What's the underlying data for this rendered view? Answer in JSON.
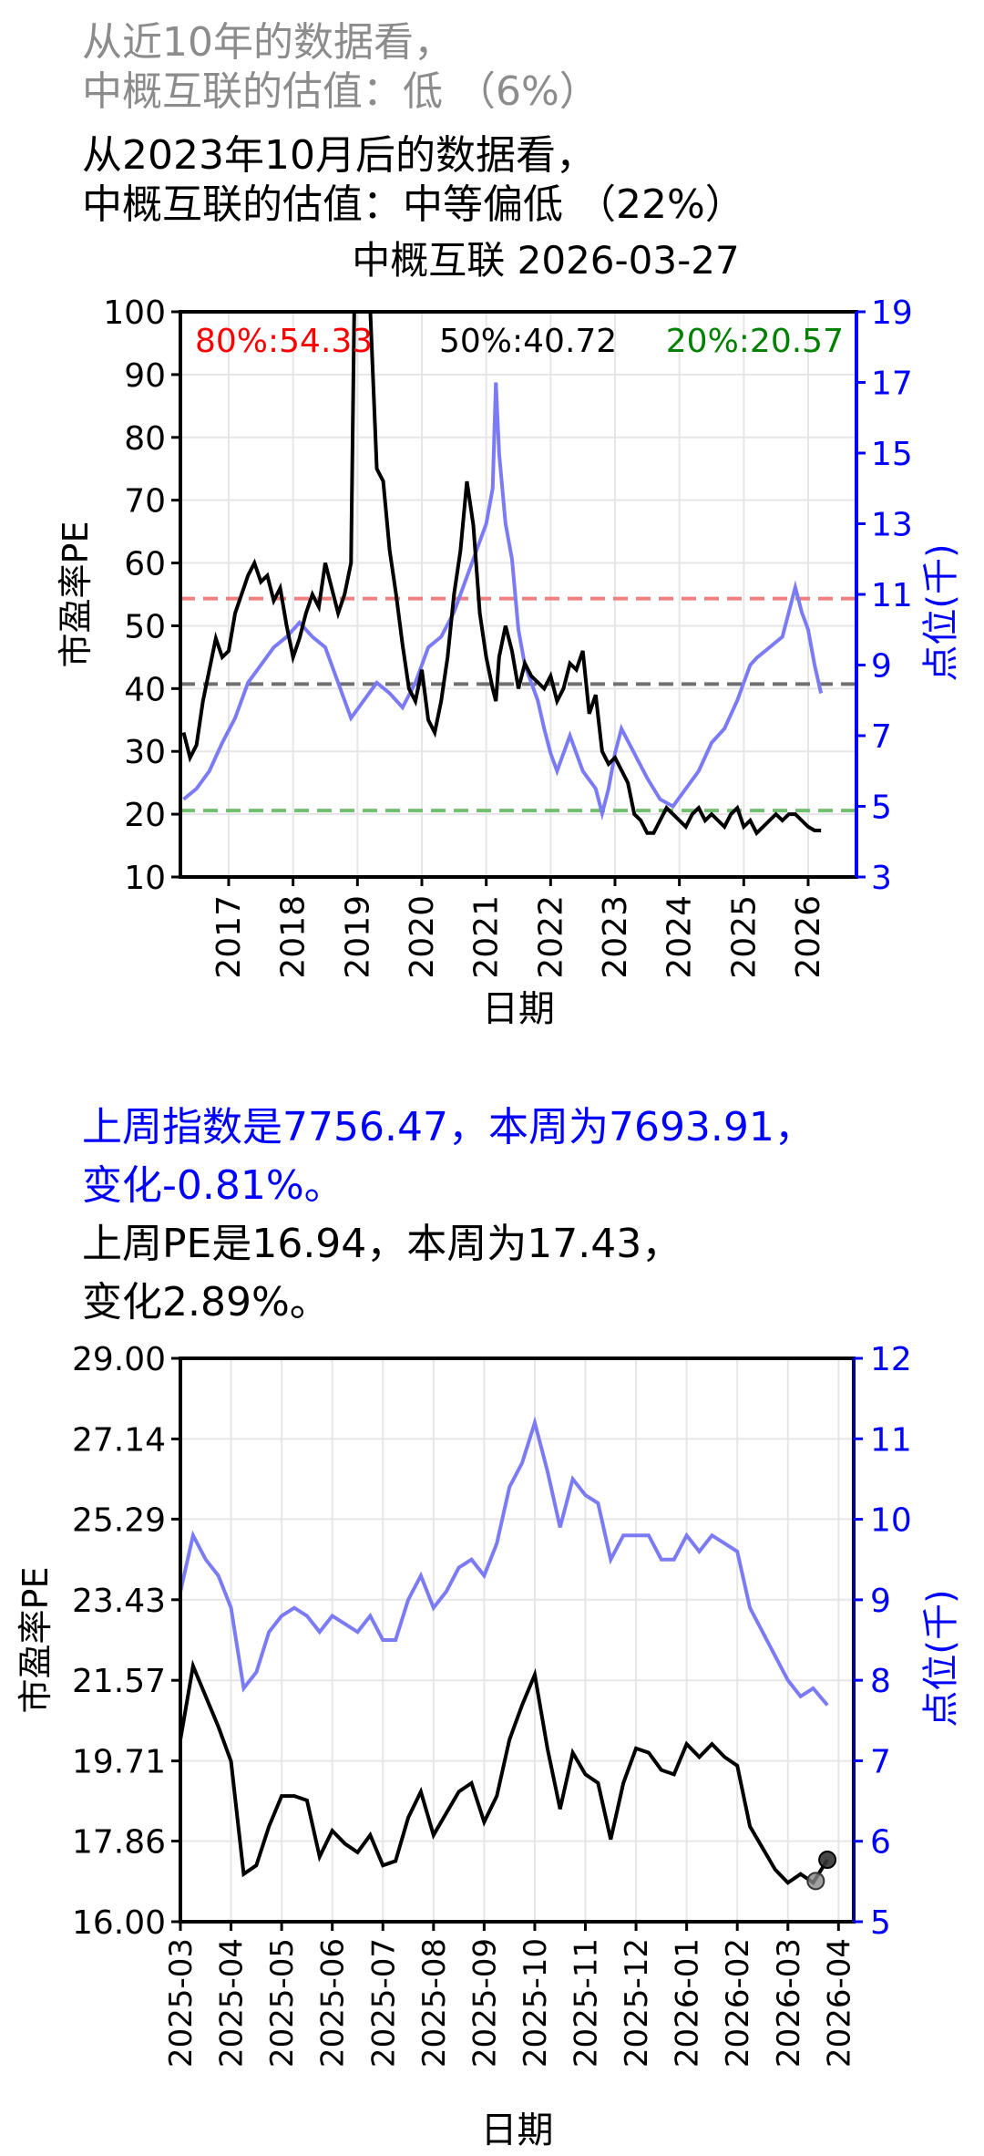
{
  "summary": {
    "line1": "从近10年的数据看，",
    "line2": "中概互联的估值：低 （6%）",
    "line3": "从2023年10月后的数据看，",
    "line4": "中概互联的估值：中等偏低 （22%）"
  },
  "change": {
    "index_line1": "上周指数是7756.47，本周为7693.91，",
    "index_line2": "变化-0.81%。",
    "pe_line1": "上周PE是16.94，本周为17.43，",
    "pe_line2": "变化2.89%。"
  },
  "colors": {
    "pe_line": "#000000",
    "index_line": "#7b7bf5",
    "p80": "#f08080",
    "p50": "#707070",
    "p20": "#70c070",
    "right_axis": "#0000ff"
  },
  "chart_data": [
    {
      "type": "line",
      "title": "中概互联 2026-03-27",
      "xlabel": "日期",
      "ylabel": "市盈率PE",
      "y2label": "点位(千)",
      "ylim": [
        10,
        100
      ],
      "y2lim": [
        3,
        19
      ],
      "xlim": [
        2016.25,
        2026.75
      ],
      "yticks": [
        "10",
        "20",
        "30",
        "40",
        "50",
        "60",
        "70",
        "80",
        "90",
        "100"
      ],
      "y2ticks": [
        "3",
        "5",
        "7",
        "9",
        "11",
        "13",
        "15",
        "17",
        "19"
      ],
      "xticks": [
        "2017",
        "2018",
        "2019",
        "2020",
        "2021",
        "2022",
        "2023",
        "2024",
        "2025",
        "2026"
      ],
      "grid": true,
      "reference_lines": [
        {
          "label": "80%:54.33",
          "value": 54.33,
          "color": "#f08080"
        },
        {
          "label": "50%:40.72",
          "value": 40.72,
          "color": "#707070"
        },
        {
          "label": "20%:20.57",
          "value": 20.57,
          "color": "#70c070"
        }
      ],
      "series": [
        {
          "name": "市盈率PE",
          "axis": "left",
          "x": [
            2016.3,
            2016.4,
            2016.5,
            2016.6,
            2016.8,
            2016.9,
            2017.0,
            2017.1,
            2017.2,
            2017.3,
            2017.4,
            2017.5,
            2017.6,
            2017.7,
            2017.8,
            2017.9,
            2018.0,
            2018.1,
            2018.2,
            2018.3,
            2018.4,
            2018.5,
            2018.6,
            2018.7,
            2018.8,
            2018.9,
            2018.95,
            2019.0,
            2019.1,
            2019.2,
            2019.3,
            2019.4,
            2019.5,
            2019.6,
            2019.7,
            2019.8,
            2019.9,
            2020.0,
            2020.1,
            2020.2,
            2020.3,
            2020.4,
            2020.5,
            2020.6,
            2020.7,
            2020.8,
            2020.9,
            2021.0,
            2021.1,
            2021.15,
            2021.2,
            2021.3,
            2021.4,
            2021.5,
            2021.6,
            2021.7,
            2021.8,
            2021.9,
            2022.0,
            2022.1,
            2022.2,
            2022.3,
            2022.4,
            2022.5,
            2022.6,
            2022.7,
            2022.8,
            2022.9,
            2023.0,
            2023.1,
            2023.2,
            2023.3,
            2023.4,
            2023.5,
            2023.6,
            2023.7,
            2023.8,
            2023.9,
            2024.0,
            2024.1,
            2024.2,
            2024.3,
            2024.4,
            2024.5,
            2024.6,
            2024.7,
            2024.8,
            2024.9,
            2025.0,
            2025.1,
            2025.2,
            2025.3,
            2025.4,
            2025.5,
            2025.6,
            2025.7,
            2025.8,
            2025.9,
            2026.0,
            2026.1,
            2026.2
          ],
          "y": [
            33,
            29,
            31,
            38,
            48,
            45,
            46,
            52,
            55,
            58,
            60,
            57,
            58,
            54,
            56,
            50,
            45,
            48,
            52,
            55,
            53,
            60,
            56,
            52,
            55,
            60,
            100,
            100,
            100,
            100,
            75,
            73,
            62,
            55,
            47,
            40,
            38,
            43,
            35,
            33,
            38,
            45,
            55,
            62,
            73,
            66,
            52,
            45,
            40,
            38,
            45,
            50,
            46,
            40,
            44,
            42,
            41,
            40,
            42,
            38,
            40,
            44,
            43,
            46,
            36,
            39,
            30,
            28,
            29,
            27,
            25,
            20,
            19,
            17,
            17,
            19,
            21,
            20,
            19,
            18,
            20,
            21,
            19,
            20,
            19,
            18,
            20,
            21,
            18,
            19,
            17,
            18,
            19,
            20,
            19,
            20,
            20,
            19,
            18,
            17.4,
            17.4
          ]
        },
        {
          "name": "点位(千)",
          "axis": "right",
          "x": [
            2016.3,
            2016.5,
            2016.7,
            2016.9,
            2017.1,
            2017.3,
            2017.5,
            2017.7,
            2017.9,
            2018.1,
            2018.3,
            2018.5,
            2018.7,
            2018.9,
            2019.1,
            2019.3,
            2019.5,
            2019.7,
            2019.9,
            2020.1,
            2020.3,
            2020.5,
            2020.7,
            2020.9,
            2021.0,
            2021.1,
            2021.15,
            2021.2,
            2021.3,
            2021.4,
            2021.5,
            2021.6,
            2021.7,
            2021.8,
            2021.9,
            2022.0,
            2022.1,
            2022.2,
            2022.3,
            2022.5,
            2022.7,
            2022.8,
            2022.9,
            2023.0,
            2023.1,
            2023.3,
            2023.5,
            2023.7,
            2023.9,
            2024.1,
            2024.3,
            2024.5,
            2024.7,
            2024.9,
            2025.0,
            2025.1,
            2025.2,
            2025.4,
            2025.6,
            2025.7,
            2025.8,
            2025.9,
            2026.0,
            2026.1,
            2026.2
          ],
          "y": [
            5.2,
            5.5,
            6.0,
            6.8,
            7.5,
            8.5,
            9.0,
            9.5,
            9.8,
            10.2,
            9.8,
            9.5,
            8.5,
            7.5,
            8.0,
            8.5,
            8.2,
            7.8,
            8.5,
            9.5,
            9.8,
            10.5,
            11.5,
            12.5,
            13.0,
            14.0,
            17.0,
            15.0,
            13.0,
            12.0,
            10.0,
            9.0,
            8.5,
            8.0,
            7.2,
            6.5,
            6.0,
            6.5,
            7.0,
            6.0,
            5.5,
            4.8,
            5.5,
            6.5,
            7.2,
            6.5,
            5.8,
            5.2,
            5.0,
            5.5,
            6.0,
            6.8,
            7.2,
            8.0,
            8.5,
            9.0,
            9.2,
            9.5,
            9.8,
            10.5,
            11.2,
            10.5,
            10.0,
            9.0,
            8.2
          ]
        }
      ]
    },
    {
      "type": "line",
      "title": "",
      "xlabel": "日期",
      "ylabel": "市盈率PE",
      "y2label": "点位(千)",
      "ylim": [
        16.0,
        29.0
      ],
      "y2lim": [
        5,
        12
      ],
      "yticks": [
        "16.00",
        "17.86",
        "19.71",
        "21.57",
        "23.43",
        "25.29",
        "27.14",
        "29.00"
      ],
      "y2ticks": [
        "5",
        "6",
        "7",
        "8",
        "9",
        "10",
        "11",
        "12"
      ],
      "xticks": [
        "2025-03",
        "2025-04",
        "2025-05",
        "2025-06",
        "2025-07",
        "2025-08",
        "2025-09",
        "2025-10",
        "2025-11",
        "2025-12",
        "2026-01",
        "2026-02",
        "2026-03",
        "2026-04"
      ],
      "grid": true,
      "highlight_points": [
        {
          "label": "上周PE",
          "x": 12.55,
          "y": 16.94
        },
        {
          "label": "本周PE",
          "x": 12.78,
          "y": 17.43
        }
      ],
      "series": [
        {
          "name": "市盈率PE",
          "axis": "left",
          "x": [
            0,
            0.25,
            0.5,
            0.75,
            1.0,
            1.25,
            1.5,
            1.75,
            2.0,
            2.25,
            2.5,
            2.75,
            3.0,
            3.25,
            3.5,
            3.75,
            4.0,
            4.25,
            4.5,
            4.75,
            5.0,
            5.25,
            5.5,
            5.75,
            6.0,
            6.25,
            6.5,
            6.75,
            7.0,
            7.25,
            7.5,
            7.75,
            8.0,
            8.25,
            8.5,
            8.75,
            9.0,
            9.25,
            9.5,
            9.75,
            10.0,
            10.25,
            10.5,
            10.75,
            11.0,
            11.25,
            11.5,
            11.75,
            12.0,
            12.25,
            12.5,
            12.78
          ],
          "y": [
            20.2,
            21.9,
            21.2,
            20.5,
            19.7,
            17.1,
            17.3,
            18.2,
            18.9,
            18.9,
            18.8,
            17.5,
            18.1,
            17.8,
            17.6,
            18.0,
            17.3,
            17.4,
            18.4,
            19.0,
            18.0,
            18.5,
            19.0,
            19.2,
            18.3,
            18.9,
            20.2,
            21.0,
            21.7,
            20.0,
            18.6,
            19.9,
            19.4,
            19.2,
            17.9,
            19.2,
            20.0,
            19.9,
            19.5,
            19.4,
            20.1,
            19.8,
            20.1,
            19.8,
            19.6,
            18.2,
            17.7,
            17.2,
            16.9,
            17.1,
            16.9,
            17.43
          ]
        },
        {
          "name": "点位(千)",
          "axis": "right",
          "x": [
            0,
            0.25,
            0.5,
            0.75,
            1.0,
            1.25,
            1.5,
            1.75,
            2.0,
            2.25,
            2.5,
            2.75,
            3.0,
            3.25,
            3.5,
            3.75,
            4.0,
            4.25,
            4.5,
            4.75,
            5.0,
            5.25,
            5.5,
            5.75,
            6.0,
            6.25,
            6.5,
            6.75,
            7.0,
            7.25,
            7.5,
            7.75,
            8.0,
            8.25,
            8.5,
            8.75,
            9.0,
            9.25,
            9.5,
            9.75,
            10.0,
            10.25,
            10.5,
            10.75,
            11.0,
            11.25,
            11.5,
            11.75,
            12.0,
            12.25,
            12.5,
            12.78
          ],
          "y": [
            9.1,
            9.8,
            9.5,
            9.3,
            8.9,
            7.9,
            8.1,
            8.6,
            8.8,
            8.9,
            8.8,
            8.6,
            8.8,
            8.7,
            8.6,
            8.8,
            8.5,
            8.5,
            9.0,
            9.3,
            8.9,
            9.1,
            9.4,
            9.5,
            9.3,
            9.7,
            10.4,
            10.7,
            11.2,
            10.6,
            9.9,
            10.5,
            10.3,
            10.2,
            9.5,
            9.8,
            9.8,
            9.8,
            9.5,
            9.5,
            9.8,
            9.6,
            9.8,
            9.7,
            9.6,
            8.9,
            8.6,
            8.3,
            8.0,
            7.8,
            7.9,
            7.69
          ]
        }
      ]
    }
  ]
}
